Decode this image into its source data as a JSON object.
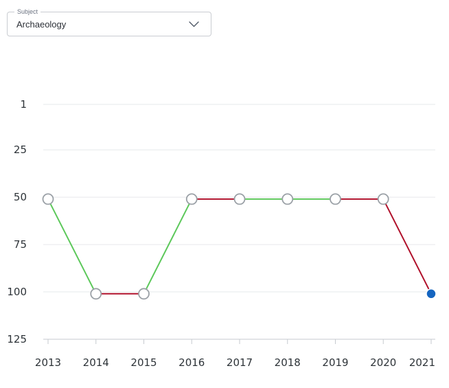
{
  "subject_select": {
    "label": "Subject",
    "value": "Archaeology"
  },
  "chart_data": {
    "type": "line",
    "title": "",
    "xlabel": "",
    "ylabel": "",
    "x": [
      2013,
      2014,
      2015,
      2016,
      2017,
      2018,
      2019,
      2020,
      2021
    ],
    "values": [
      51,
      101,
      101,
      51,
      51,
      51,
      51,
      51,
      101
    ],
    "y_ticks": [
      1,
      25,
      50,
      75,
      100,
      125
    ],
    "ylim": [
      1,
      125
    ],
    "y_inverted": true,
    "grid": true,
    "segment_colors": [
      "#5cc85a",
      "#b0112b",
      "#5cc85a",
      "#b0112b",
      "#5cc85a",
      "#5cc85a",
      "#b0112b",
      "#b0112b"
    ],
    "point_style": {
      "default_fill": "#ffffff",
      "default_stroke": "#9aa0a6",
      "highlight_index": 8,
      "highlight_fill": "#1565c0"
    }
  }
}
